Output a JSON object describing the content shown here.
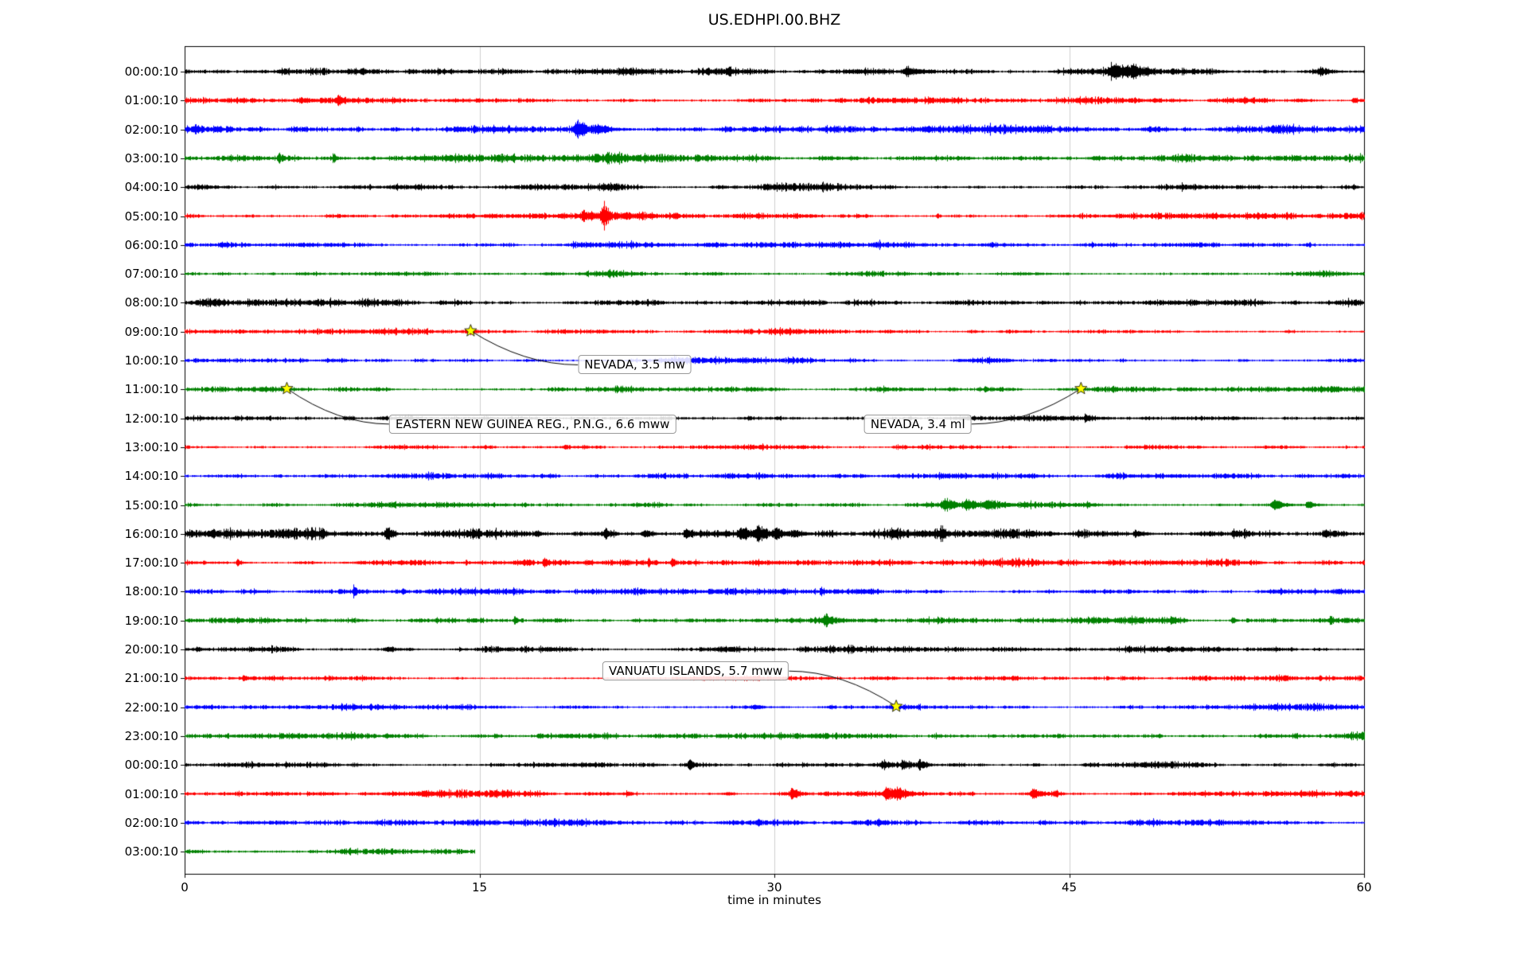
{
  "chart_data": {
    "type": "line",
    "subtype": "helicorder-seismogram",
    "title": "US.EDHPI.00.BHZ",
    "xlabel": "time in minutes",
    "xlim": [
      0,
      60
    ],
    "xticks": [
      0,
      15,
      30,
      45,
      60
    ],
    "grid_ticks": [
      15,
      30,
      45
    ],
    "trace_color_cycle": [
      "#000000",
      "#ff0000",
      "#0000ff",
      "#008000"
    ],
    "event_marker": {
      "shape": "star",
      "color": "#ffff00",
      "edge": "#000000"
    },
    "rows": [
      {
        "label": "00:00:10",
        "color": "#000000",
        "noise": 1.1,
        "end": 60,
        "bursts": [
          [
            5,
            3,
            0.5
          ],
          [
            9,
            3,
            0.4
          ],
          [
            36.8,
            7,
            1.2
          ],
          [
            47.3,
            9,
            1.6
          ],
          [
            48.3,
            6,
            0.8
          ],
          [
            57.8,
            5,
            1.0
          ]
        ]
      },
      {
        "label": "01:00:10",
        "color": "#ff0000",
        "noise": 1.0,
        "end": 60,
        "bursts": [
          [
            5.9,
            4,
            0.5
          ],
          [
            7.85,
            8,
            0.5
          ],
          [
            59.5,
            6,
            0.3
          ]
        ]
      },
      {
        "label": "02:00:10",
        "color": "#0000ff",
        "noise": 1.2,
        "end": 60,
        "bursts": [
          [
            0.6,
            5,
            0.4
          ],
          [
            20.0,
            12,
            1.0
          ],
          [
            21.0,
            6,
            1.2
          ],
          [
            43.4,
            4,
            0.4
          ]
        ]
      },
      {
        "label": "03:00:10",
        "color": "#008000",
        "noise": 1.2,
        "end": 60,
        "bursts": [
          [
            4.8,
            8,
            0.2
          ],
          [
            7.6,
            7,
            0.2
          ]
        ]
      },
      {
        "label": "04:00:10",
        "color": "#000000",
        "noise": 1.0,
        "end": 60,
        "bursts": [
          [
            21.5,
            3,
            0.5
          ],
          [
            59.5,
            4,
            0.3
          ]
        ]
      },
      {
        "label": "05:00:10",
        "color": "#ff0000",
        "noise": 1.0,
        "end": 60,
        "bursts": [
          [
            20.3,
            5,
            0.8
          ],
          [
            21.3,
            17,
            0.5
          ],
          [
            22.5,
            5,
            1.5
          ],
          [
            38.3,
            5,
            0.15
          ]
        ]
      },
      {
        "label": "06:00:10",
        "color": "#0000ff",
        "noise": 1.0,
        "end": 60,
        "bursts": []
      },
      {
        "label": "07:00:10",
        "color": "#008000",
        "noise": 0.9,
        "end": 60,
        "bursts": []
      },
      {
        "label": "08:00:10",
        "color": "#000000",
        "noise": 1.0,
        "end": 60,
        "bursts": [
          [
            1,
            3,
            1.0
          ]
        ]
      },
      {
        "label": "09:00:10",
        "color": "#ff0000",
        "noise": 0.9,
        "end": 60,
        "bursts": [
          [
            14.55,
            3,
            0.4
          ]
        ]
      },
      {
        "label": "10:00:10",
        "color": "#0000ff",
        "noise": 0.9,
        "end": 60,
        "bursts": []
      },
      {
        "label": "11:00:10",
        "color": "#008000",
        "noise": 0.9,
        "end": 60,
        "bursts": [
          [
            5.2,
            2.5,
            0.3
          ],
          [
            45.6,
            2.5,
            0.3
          ]
        ]
      },
      {
        "label": "12:00:10",
        "color": "#000000",
        "noise": 0.9,
        "end": 60,
        "bursts": []
      },
      {
        "label": "13:00:10",
        "color": "#ff0000",
        "noise": 0.9,
        "end": 60,
        "bursts": []
      },
      {
        "label": "14:00:10",
        "color": "#0000ff",
        "noise": 0.9,
        "end": 60,
        "bursts": []
      },
      {
        "label": "15:00:10",
        "color": "#008000",
        "noise": 1.0,
        "end": 60,
        "bursts": [
          [
            38.7,
            10,
            0.8
          ],
          [
            39.8,
            8,
            1.2
          ],
          [
            41.0,
            5,
            1.0
          ],
          [
            55.5,
            7,
            0.8
          ],
          [
            57.2,
            6,
            0.6
          ]
        ]
      },
      {
        "label": "16:00:10",
        "color": "#000000",
        "noise": 1.6,
        "end": 60,
        "bursts": [
          [
            7.0,
            4,
            0.4
          ],
          [
            10.3,
            9,
            0.4
          ],
          [
            17.9,
            4,
            0.3
          ],
          [
            21.4,
            6,
            0.5
          ],
          [
            23.4,
            7,
            0.6
          ],
          [
            25.5,
            6,
            0.5
          ],
          [
            28.4,
            8,
            1.0
          ],
          [
            29.2,
            10,
            0.8
          ],
          [
            30.1,
            8,
            0.6
          ],
          [
            31.0,
            5,
            0.8
          ],
          [
            38.5,
            8,
            0.25
          ],
          [
            44.0,
            4,
            0.4
          ],
          [
            48.4,
            5,
            0.4
          ],
          [
            53.4,
            5,
            0.3
          ],
          [
            58.0,
            4,
            0.4
          ]
        ]
      },
      {
        "label": "17:00:10",
        "color": "#ff0000",
        "noise": 1.0,
        "end": 60,
        "bursts": [
          [
            2.7,
            5,
            0.3
          ],
          [
            18.3,
            7,
            0.3
          ],
          [
            20.5,
            3,
            0.5
          ],
          [
            22.4,
            4,
            0.3
          ],
          [
            24.8,
            12,
            0.12
          ],
          [
            26.0,
            3,
            0.4
          ]
        ]
      },
      {
        "label": "18:00:10",
        "color": "#0000ff",
        "noise": 1.0,
        "end": 60,
        "bursts": [
          [
            8.6,
            7,
            0.25
          ],
          [
            11.1,
            5,
            0.2
          ],
          [
            32.4,
            4,
            0.3
          ]
        ]
      },
      {
        "label": "19:00:10",
        "color": "#008000",
        "noise": 1.0,
        "end": 60,
        "bursts": [
          [
            16.8,
            5,
            0.4
          ],
          [
            32.6,
            6,
            0.4
          ],
          [
            50.2,
            5,
            0.3
          ],
          [
            53.3,
            5,
            0.3
          ],
          [
            58.3,
            5,
            0.3
          ]
        ]
      },
      {
        "label": "20:00:10",
        "color": "#000000",
        "noise": 1.0,
        "end": 60,
        "bursts": [
          [
            10.5,
            3,
            1.5
          ]
        ]
      },
      {
        "label": "21:00:10",
        "color": "#ff0000",
        "noise": 0.9,
        "end": 60,
        "bursts": [
          [
            3.0,
            5,
            0.15
          ]
        ]
      },
      {
        "label": "22:00:10",
        "color": "#0000ff",
        "noise": 0.9,
        "end": 60,
        "bursts": [
          [
            29.0,
            3,
            0.8
          ]
        ]
      },
      {
        "label": "23:00:10",
        "color": "#008000",
        "noise": 1.0,
        "end": 60,
        "bursts": [
          [
            18.0,
            4,
            0.3
          ]
        ]
      },
      {
        "label": "00:00:10",
        "color": "#000000",
        "noise": 1.0,
        "end": 60,
        "bursts": [
          [
            25.7,
            12,
            0.2
          ],
          [
            35.6,
            6,
            1.2
          ],
          [
            36.6,
            7,
            0.8
          ],
          [
            37.4,
            7,
            0.5
          ]
        ]
      },
      {
        "label": "01:00:10",
        "color": "#ff0000",
        "noise": 1.0,
        "end": 60,
        "bursts": [
          [
            30.9,
            7,
            0.6
          ],
          [
            35.7,
            10,
            0.8
          ],
          [
            36.3,
            6,
            0.8
          ],
          [
            43.2,
            7,
            0.6
          ],
          [
            44.3,
            5,
            0.5
          ]
        ]
      },
      {
        "label": "02:00:10",
        "color": "#0000ff",
        "noise": 1.0,
        "end": 60,
        "bursts": []
      },
      {
        "label": "03:00:10",
        "color": "#008000",
        "noise": 1.1,
        "end": 14.75,
        "bursts": []
      }
    ],
    "events": [
      {
        "row": 9,
        "t": 14.55,
        "label": "NEVADA, 3.5 mw",
        "label_t": 22.9,
        "label_row": 10.15
      },
      {
        "row": 11,
        "t": 5.2,
        "label": "EASTERN NEW GUINEA REG., P.N.G., 6.6 mww",
        "label_t": 17.7,
        "label_row": 12.2
      },
      {
        "row": 11,
        "t": 45.6,
        "label": "NEVADA, 3.4 ml",
        "label_t": 37.3,
        "label_row": 12.2
      },
      {
        "row": 22,
        "t": 36.2,
        "label": "VANUATU ISLANDS, 5.7 mww",
        "label_t": 26.0,
        "label_row": 20.75
      }
    ]
  }
}
